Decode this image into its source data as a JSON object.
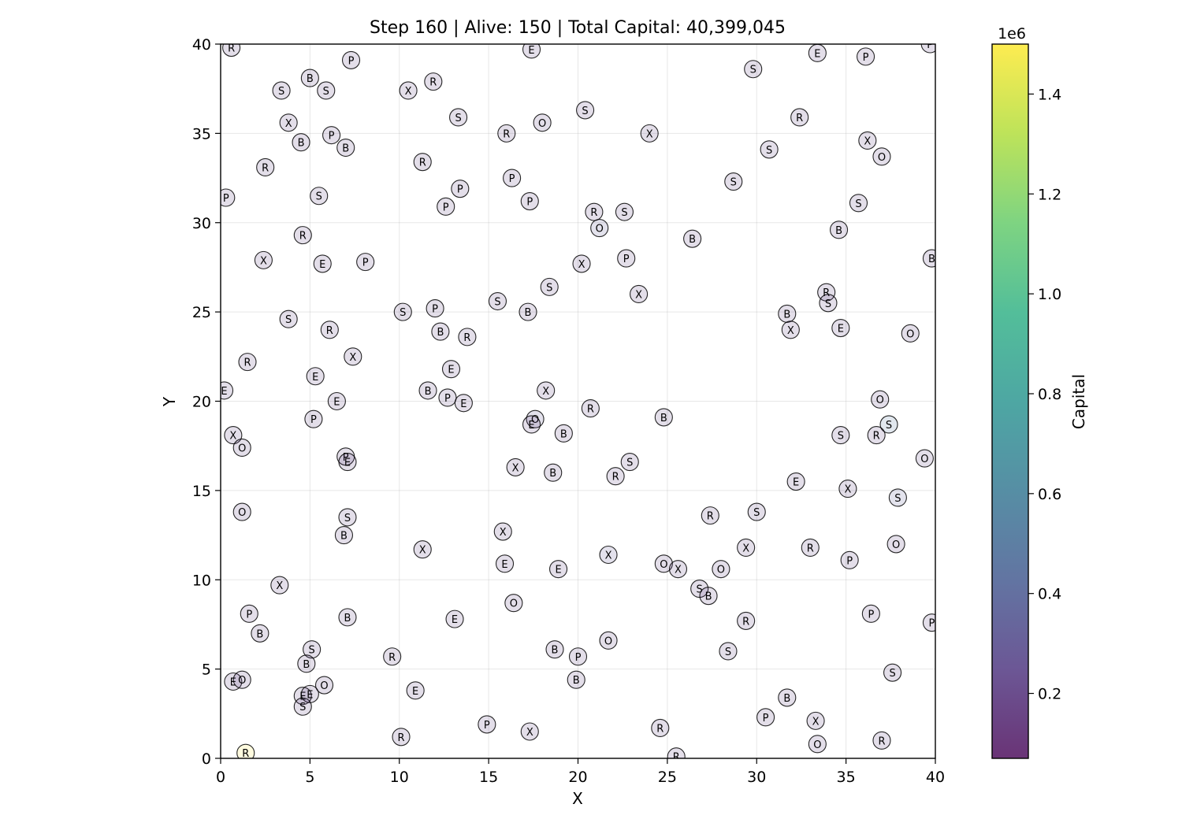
{
  "chart_data": {
    "type": "scatter",
    "title": "Step 160 | Alive: 150 | Total Capital: 40,399,045",
    "xlabel": "X",
    "ylabel": "Y",
    "xlim": [
      0,
      40
    ],
    "ylim": [
      0,
      40
    ],
    "xticks": [
      0,
      5,
      10,
      15,
      20,
      25,
      30,
      35,
      40
    ],
    "yticks": [
      0,
      5,
      10,
      15,
      20,
      25,
      30,
      35,
      40
    ],
    "grid": true,
    "colormap": "viridis",
    "colorbar": {
      "label": "Capital",
      "multiplier": "1e6",
      "range": [
        0.07,
        1.5
      ],
      "ticks": [
        0.2,
        0.4,
        0.6,
        0.8,
        1.0,
        1.2,
        1.4
      ],
      "tick_labels": [
        "0.2",
        "0.4",
        "0.6",
        "0.8",
        "1.0",
        "1.2",
        "1.4"
      ]
    },
    "points": [
      {
        "x": 0.6,
        "y": 39.8,
        "label": "R",
        "c": 0.19
      },
      {
        "x": 7.3,
        "y": 39.1,
        "label": "P",
        "c": 0.19
      },
      {
        "x": 17.4,
        "y": 39.7,
        "label": "E",
        "c": 0.19
      },
      {
        "x": 33.4,
        "y": 39.5,
        "label": "E",
        "c": 0.19
      },
      {
        "x": 36.1,
        "y": 39.3,
        "label": "P",
        "c": 0.19
      },
      {
        "x": 39.7,
        "y": 40.0,
        "label": "P",
        "c": 0.19
      },
      {
        "x": 29.8,
        "y": 38.6,
        "label": "S",
        "c": 0.19
      },
      {
        "x": 5.0,
        "y": 38.1,
        "label": "B",
        "c": 0.19
      },
      {
        "x": 11.9,
        "y": 37.9,
        "label": "R",
        "c": 0.19
      },
      {
        "x": 3.4,
        "y": 37.4,
        "label": "S",
        "c": 0.19
      },
      {
        "x": 5.9,
        "y": 37.4,
        "label": "S",
        "c": 0.19
      },
      {
        "x": 10.5,
        "y": 37.4,
        "label": "X",
        "c": 0.19
      },
      {
        "x": 20.4,
        "y": 36.3,
        "label": "S",
        "c": 0.19
      },
      {
        "x": 13.3,
        "y": 35.9,
        "label": "S",
        "c": 0.19
      },
      {
        "x": 32.4,
        "y": 35.9,
        "label": "R",
        "c": 0.19
      },
      {
        "x": 18.0,
        "y": 35.6,
        "label": "O",
        "c": 0.19
      },
      {
        "x": 3.8,
        "y": 35.6,
        "label": "X",
        "c": 0.19
      },
      {
        "x": 16.0,
        "y": 35.0,
        "label": "R",
        "c": 0.19
      },
      {
        "x": 24.0,
        "y": 35.0,
        "label": "X",
        "c": 0.19
      },
      {
        "x": 6.2,
        "y": 34.9,
        "label": "P",
        "c": 0.19
      },
      {
        "x": 36.2,
        "y": 34.6,
        "label": "X",
        "c": 0.19
      },
      {
        "x": 4.5,
        "y": 34.5,
        "label": "B",
        "c": 0.19
      },
      {
        "x": 7.0,
        "y": 34.2,
        "label": "B",
        "c": 0.19
      },
      {
        "x": 30.7,
        "y": 34.1,
        "label": "S",
        "c": 0.19
      },
      {
        "x": 37.0,
        "y": 33.7,
        "label": "O",
        "c": 0.19
      },
      {
        "x": 11.3,
        "y": 33.4,
        "label": "R",
        "c": 0.19
      },
      {
        "x": 2.5,
        "y": 33.1,
        "label": "R",
        "c": 0.19
      },
      {
        "x": 16.3,
        "y": 32.5,
        "label": "P",
        "c": 0.19
      },
      {
        "x": 28.7,
        "y": 32.3,
        "label": "S",
        "c": 0.19
      },
      {
        "x": 13.4,
        "y": 31.9,
        "label": "P",
        "c": 0.19
      },
      {
        "x": 5.5,
        "y": 31.5,
        "label": "S",
        "c": 0.19
      },
      {
        "x": 0.3,
        "y": 31.4,
        "label": "P",
        "c": 0.19
      },
      {
        "x": 17.3,
        "y": 31.2,
        "label": "P",
        "c": 0.19
      },
      {
        "x": 35.7,
        "y": 31.1,
        "label": "S",
        "c": 0.19
      },
      {
        "x": 12.6,
        "y": 30.9,
        "label": "P",
        "c": 0.19
      },
      {
        "x": 20.9,
        "y": 30.6,
        "label": "R",
        "c": 0.19
      },
      {
        "x": 22.6,
        "y": 30.6,
        "label": "S",
        "c": 0.19
      },
      {
        "x": 21.2,
        "y": 29.7,
        "label": "O",
        "c": 0.32
      },
      {
        "x": 34.6,
        "y": 29.6,
        "label": "B",
        "c": 0.19
      },
      {
        "x": 4.6,
        "y": 29.3,
        "label": "R",
        "c": 0.19
      },
      {
        "x": 26.4,
        "y": 29.1,
        "label": "B",
        "c": 0.19
      },
      {
        "x": 39.8,
        "y": 28.0,
        "label": "B",
        "c": 0.19
      },
      {
        "x": 2.4,
        "y": 27.9,
        "label": "X",
        "c": 0.19
      },
      {
        "x": 8.1,
        "y": 27.8,
        "label": "P",
        "c": 0.19
      },
      {
        "x": 22.7,
        "y": 28.0,
        "label": "P",
        "c": 0.19
      },
      {
        "x": 5.7,
        "y": 27.7,
        "label": "E",
        "c": 0.19
      },
      {
        "x": 20.2,
        "y": 27.7,
        "label": "X",
        "c": 0.19
      },
      {
        "x": 18.4,
        "y": 26.4,
        "label": "S",
        "c": 0.19
      },
      {
        "x": 33.9,
        "y": 26.1,
        "label": "R",
        "c": 0.19
      },
      {
        "x": 23.4,
        "y": 26.0,
        "label": "X",
        "c": 0.19
      },
      {
        "x": 15.5,
        "y": 25.6,
        "label": "S",
        "c": 0.19
      },
      {
        "x": 34.0,
        "y": 25.5,
        "label": "S",
        "c": 0.19
      },
      {
        "x": 12.0,
        "y": 25.2,
        "label": "P",
        "c": 0.19
      },
      {
        "x": 10.2,
        "y": 25.0,
        "label": "S",
        "c": 0.19
      },
      {
        "x": 17.2,
        "y": 25.0,
        "label": "B",
        "c": 0.19
      },
      {
        "x": 31.7,
        "y": 24.9,
        "label": "B",
        "c": 0.19
      },
      {
        "x": 3.8,
        "y": 24.6,
        "label": "S",
        "c": 0.19
      },
      {
        "x": 34.7,
        "y": 24.1,
        "label": "E",
        "c": 0.19
      },
      {
        "x": 6.1,
        "y": 24.0,
        "label": "R",
        "c": 0.19
      },
      {
        "x": 31.9,
        "y": 24.0,
        "label": "X",
        "c": 0.19
      },
      {
        "x": 12.3,
        "y": 23.9,
        "label": "B",
        "c": 0.19
      },
      {
        "x": 38.6,
        "y": 23.8,
        "label": "O",
        "c": 0.19
      },
      {
        "x": 13.8,
        "y": 23.6,
        "label": "R",
        "c": 0.19
      },
      {
        "x": 7.4,
        "y": 22.5,
        "label": "X",
        "c": 0.19
      },
      {
        "x": 1.5,
        "y": 22.2,
        "label": "R",
        "c": 0.19
      },
      {
        "x": 12.9,
        "y": 21.8,
        "label": "E",
        "c": 0.19
      },
      {
        "x": 5.3,
        "y": 21.4,
        "label": "E",
        "c": 0.19
      },
      {
        "x": 11.6,
        "y": 20.6,
        "label": "B",
        "c": 0.19
      },
      {
        "x": 18.2,
        "y": 20.6,
        "label": "X",
        "c": 0.19
      },
      {
        "x": 0.2,
        "y": 20.6,
        "label": "E",
        "c": 0.19
      },
      {
        "x": 12.7,
        "y": 20.2,
        "label": "P",
        "c": 0.19
      },
      {
        "x": 36.9,
        "y": 20.1,
        "label": "O",
        "c": 0.19
      },
      {
        "x": 6.5,
        "y": 20.0,
        "label": "E",
        "c": 0.19
      },
      {
        "x": 13.6,
        "y": 19.9,
        "label": "E",
        "c": 0.19
      },
      {
        "x": 20.7,
        "y": 19.6,
        "label": "R",
        "c": 0.19
      },
      {
        "x": 5.2,
        "y": 19.0,
        "label": "P",
        "c": 0.19
      },
      {
        "x": 24.8,
        "y": 19.1,
        "label": "B",
        "c": 0.19
      },
      {
        "x": 17.6,
        "y": 19.0,
        "label": "O",
        "c": 0.3
      },
      {
        "x": 17.4,
        "y": 18.7,
        "label": "E",
        "c": 0.19
      },
      {
        "x": 37.4,
        "y": 18.7,
        "label": "S",
        "c": 0.48
      },
      {
        "x": 19.2,
        "y": 18.2,
        "label": "B",
        "c": 0.19
      },
      {
        "x": 0.7,
        "y": 18.1,
        "label": "X",
        "c": 0.19
      },
      {
        "x": 34.7,
        "y": 18.1,
        "label": "S",
        "c": 0.19
      },
      {
        "x": 36.7,
        "y": 18.1,
        "label": "R",
        "c": 0.19
      },
      {
        "x": 1.2,
        "y": 17.4,
        "label": "O",
        "c": 0.19
      },
      {
        "x": 7.0,
        "y": 16.9,
        "label": "P",
        "c": 0.19
      },
      {
        "x": 39.4,
        "y": 16.8,
        "label": "O",
        "c": 0.19
      },
      {
        "x": 7.1,
        "y": 16.6,
        "label": "E",
        "c": 0.19
      },
      {
        "x": 22.9,
        "y": 16.6,
        "label": "S",
        "c": 0.19
      },
      {
        "x": 16.5,
        "y": 16.3,
        "label": "X",
        "c": 0.19
      },
      {
        "x": 18.6,
        "y": 16.0,
        "label": "B",
        "c": 0.19
      },
      {
        "x": 22.1,
        "y": 15.8,
        "label": "R",
        "c": 0.19
      },
      {
        "x": 32.2,
        "y": 15.5,
        "label": "E",
        "c": 0.19
      },
      {
        "x": 35.1,
        "y": 15.1,
        "label": "X",
        "c": 0.19
      },
      {
        "x": 37.9,
        "y": 14.6,
        "label": "S",
        "c": 0.36
      },
      {
        "x": 1.2,
        "y": 13.8,
        "label": "O",
        "c": 0.19
      },
      {
        "x": 30.0,
        "y": 13.8,
        "label": "S",
        "c": 0.19
      },
      {
        "x": 27.4,
        "y": 13.6,
        "label": "R",
        "c": 0.19
      },
      {
        "x": 7.1,
        "y": 13.5,
        "label": "S",
        "c": 0.19
      },
      {
        "x": 15.8,
        "y": 12.7,
        "label": "X",
        "c": 0.19
      },
      {
        "x": 6.9,
        "y": 12.5,
        "label": "B",
        "c": 0.19
      },
      {
        "x": 37.8,
        "y": 12.0,
        "label": "O",
        "c": 0.19
      },
      {
        "x": 29.4,
        "y": 11.8,
        "label": "X",
        "c": 0.19
      },
      {
        "x": 33.0,
        "y": 11.8,
        "label": "R",
        "c": 0.19
      },
      {
        "x": 11.3,
        "y": 11.7,
        "label": "X",
        "c": 0.19
      },
      {
        "x": 21.7,
        "y": 11.4,
        "label": "X",
        "c": 0.28
      },
      {
        "x": 35.2,
        "y": 11.1,
        "label": "P",
        "c": 0.19
      },
      {
        "x": 15.9,
        "y": 10.9,
        "label": "E",
        "c": 0.19
      },
      {
        "x": 24.8,
        "y": 10.9,
        "label": "O",
        "c": 0.19
      },
      {
        "x": 25.6,
        "y": 10.6,
        "label": "X",
        "c": 0.19
      },
      {
        "x": 18.9,
        "y": 10.6,
        "label": "E",
        "c": 0.19
      },
      {
        "x": 28.0,
        "y": 10.6,
        "label": "O",
        "c": 0.19
      },
      {
        "x": 3.3,
        "y": 9.7,
        "label": "X",
        "c": 0.19
      },
      {
        "x": 26.8,
        "y": 9.5,
        "label": "S",
        "c": 0.19
      },
      {
        "x": 27.3,
        "y": 9.1,
        "label": "B",
        "c": 0.19
      },
      {
        "x": 16.4,
        "y": 8.7,
        "label": "O",
        "c": 0.19
      },
      {
        "x": 1.6,
        "y": 8.1,
        "label": "P",
        "c": 0.19
      },
      {
        "x": 7.1,
        "y": 7.9,
        "label": "B",
        "c": 0.19
      },
      {
        "x": 13.1,
        "y": 7.8,
        "label": "E",
        "c": 0.19
      },
      {
        "x": 36.4,
        "y": 8.1,
        "label": "P",
        "c": 0.19
      },
      {
        "x": 29.4,
        "y": 7.7,
        "label": "R",
        "c": 0.19
      },
      {
        "x": 39.8,
        "y": 7.6,
        "label": "P",
        "c": 0.19
      },
      {
        "x": 2.2,
        "y": 7.0,
        "label": "B",
        "c": 0.19
      },
      {
        "x": 21.7,
        "y": 6.6,
        "label": "O",
        "c": 0.19
      },
      {
        "x": 5.1,
        "y": 6.1,
        "label": "S",
        "c": 0.19
      },
      {
        "x": 18.7,
        "y": 6.1,
        "label": "B",
        "c": 0.19
      },
      {
        "x": 28.4,
        "y": 6.0,
        "label": "S",
        "c": 0.19
      },
      {
        "x": 20.0,
        "y": 5.7,
        "label": "P",
        "c": 0.19
      },
      {
        "x": 9.6,
        "y": 5.7,
        "label": "R",
        "c": 0.19
      },
      {
        "x": 4.8,
        "y": 5.3,
        "label": "B",
        "c": 0.19
      },
      {
        "x": 37.6,
        "y": 4.8,
        "label": "S",
        "c": 0.19
      },
      {
        "x": 19.9,
        "y": 4.4,
        "label": "B",
        "c": 0.19
      },
      {
        "x": 0.7,
        "y": 4.3,
        "label": "E",
        "c": 0.19
      },
      {
        "x": 1.2,
        "y": 4.4,
        "label": "O",
        "c": 0.19
      },
      {
        "x": 5.8,
        "y": 4.1,
        "label": "O",
        "c": 0.19
      },
      {
        "x": 10.9,
        "y": 3.8,
        "label": "E",
        "c": 0.19
      },
      {
        "x": 4.6,
        "y": 3.5,
        "label": "E",
        "c": 0.19
      },
      {
        "x": 5.0,
        "y": 3.6,
        "label": "E",
        "c": 0.19
      },
      {
        "x": 31.7,
        "y": 3.4,
        "label": "B",
        "c": 0.19
      },
      {
        "x": 4.6,
        "y": 2.9,
        "label": "S",
        "c": 0.19
      },
      {
        "x": 30.5,
        "y": 2.3,
        "label": "P",
        "c": 0.19
      },
      {
        "x": 33.3,
        "y": 2.1,
        "label": "X",
        "c": 0.19
      },
      {
        "x": 14.9,
        "y": 1.9,
        "label": "P",
        "c": 0.19
      },
      {
        "x": 24.6,
        "y": 1.7,
        "label": "R",
        "c": 0.19
      },
      {
        "x": 17.3,
        "y": 1.5,
        "label": "X",
        "c": 0.19
      },
      {
        "x": 10.1,
        "y": 1.2,
        "label": "R",
        "c": 0.19
      },
      {
        "x": 37.0,
        "y": 1.0,
        "label": "R",
        "c": 0.19
      },
      {
        "x": 33.4,
        "y": 0.8,
        "label": "O",
        "c": 0.19
      },
      {
        "x": 1.4,
        "y": 0.3,
        "label": "R",
        "c": 1.5
      },
      {
        "x": 25.5,
        "y": 0.1,
        "label": "R",
        "c": 0.19
      }
    ]
  }
}
